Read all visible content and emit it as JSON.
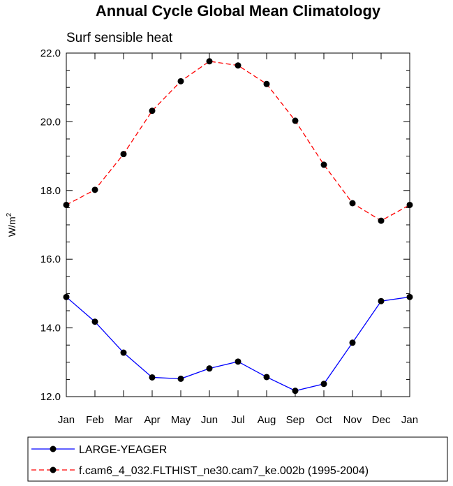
{
  "chart_data": {
    "type": "line",
    "title": "Annual Cycle Global Mean Climatology",
    "subtitle": "Surf sensible heat",
    "ylabel": "W/m",
    "ylabel_sup": "2",
    "xlabel": "",
    "categories": [
      "Jan",
      "Feb",
      "Mar",
      "Apr",
      "May",
      "Jun",
      "Jul",
      "Aug",
      "Sep",
      "Oct",
      "Nov",
      "Dec",
      "Jan"
    ],
    "ylim": [
      12.0,
      22.0
    ],
    "yticks": [
      "12.0",
      "14.0",
      "16.0",
      "18.0",
      "20.0",
      "22.0"
    ],
    "ytick_values": [
      12,
      14,
      16,
      18,
      20,
      22
    ],
    "grid": false,
    "legend_position": "bottom",
    "series": [
      {
        "name": "LARGE-YEAGER",
        "color": "#0000ff",
        "style": "solid",
        "marker": "filled-circle",
        "values": [
          14.9,
          14.18,
          13.28,
          12.56,
          12.52,
          12.82,
          13.02,
          12.57,
          12.17,
          12.37,
          13.57,
          14.78,
          14.9
        ]
      },
      {
        "name": "f.cam6_4_032.FLTHIST_ne30.cam7_ke.002b (1995-2004)",
        "color": "#ff0000",
        "style": "dashed",
        "marker": "filled-circle",
        "values": [
          17.58,
          18.02,
          19.06,
          20.32,
          21.18,
          21.76,
          21.64,
          21.1,
          20.03,
          18.75,
          17.63,
          17.12,
          17.58
        ]
      }
    ]
  }
}
